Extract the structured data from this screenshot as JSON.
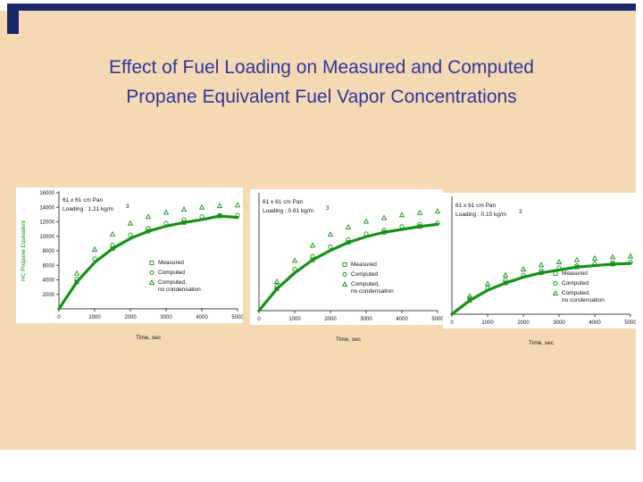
{
  "slide": {
    "title_line1": "Effect of Fuel Loading on Measured and Computed",
    "title_line2": "Propane Equivalent Fuel Vapor Concentrations"
  },
  "colors": {
    "background": "#f5d8b4",
    "frame_navy": "#1b2668",
    "title_blue": "#2b3a9a",
    "series_green": "#149214",
    "panel_white": "#ffffff",
    "axis_gray": "#444444",
    "text_black": "#111111"
  },
  "chart_data": [
    {
      "type": "line",
      "title": "61 x 61 cm Pan",
      "subtitle": "Loading : 1.21 kg/m",
      "subtitle_sup": "3",
      "xlabel": "Time, sec",
      "ylabel": "HC Propane Equivalent",
      "xlim": [
        0,
        5000
      ],
      "ylim": [
        0,
        16000
      ],
      "x_ticks": [
        0,
        1000,
        2000,
        3000,
        4000,
        5000
      ],
      "y_ticks": [
        2000,
        4000,
        6000,
        8000,
        10000,
        12000,
        14000,
        16000
      ],
      "grid": false,
      "legend_position": "lower right",
      "x": [
        0,
        500,
        1000,
        1500,
        2000,
        2500,
        3000,
        3500,
        4000,
        4500,
        5000
      ],
      "series": [
        {
          "name": "Measured",
          "marker": "square",
          "values": [
            0,
            3700,
            6400,
            8300,
            9700,
            10700,
            11400,
            11900,
            12300,
            12800,
            12600
          ]
        },
        {
          "name": "Computed",
          "marker": "circle",
          "values": [
            0,
            4100,
            6900,
            8800,
            10200,
            11100,
            11800,
            12300,
            12700,
            12900,
            12900
          ]
        },
        {
          "name": "Computed, no condensation",
          "marker": "triangle",
          "values": [
            0,
            4900,
            8200,
            10300,
            11800,
            12700,
            13300,
            13700,
            14000,
            14200,
            14300
          ]
        }
      ]
    },
    {
      "type": "line",
      "title": "61 x 61 cm Pan",
      "subtitle": "Loading : 0.61 kg/m",
      "subtitle_sup": "3",
      "xlabel": "Time, sec",
      "ylabel": "",
      "xlim": [
        0,
        5000
      ],
      "ylim": [
        0,
        16000
      ],
      "x_ticks": [
        0,
        1000,
        2000,
        3000,
        4000,
        5000
      ],
      "y_ticks": [],
      "grid": false,
      "legend_position": "lower right",
      "x": [
        0,
        500,
        1000,
        1500,
        2000,
        2500,
        3000,
        3500,
        4000,
        4500,
        5000
      ],
      "series": [
        {
          "name": "Measured",
          "marker": "square",
          "values": [
            0,
            3000,
            5200,
            7000,
            8300,
            9400,
            10200,
            10800,
            11200,
            11600,
            11900
          ]
        },
        {
          "name": "Computed",
          "marker": "circle",
          "values": [
            0,
            3400,
            5700,
            7500,
            8800,
            9800,
            10600,
            11100,
            11600,
            11900,
            12100
          ]
        },
        {
          "name": "Computed, no condensation",
          "marker": "triangle",
          "values": [
            0,
            4000,
            6900,
            9000,
            10500,
            11500,
            12300,
            12800,
            13200,
            13500,
            13700
          ]
        }
      ]
    },
    {
      "type": "line",
      "title": "61 x 61 cm Pan",
      "subtitle": "Loading : 0.15 kg/m",
      "subtitle_sup": "3",
      "xlabel": "Time, sec",
      "ylabel": "",
      "xlim": [
        0,
        5000
      ],
      "ylim": [
        0,
        16000
      ],
      "x_ticks": [
        0,
        1000,
        2000,
        3000,
        4000,
        5000
      ],
      "y_ticks": [],
      "grid": false,
      "legend_position": "lower right",
      "x": [
        0,
        500,
        1000,
        1500,
        2000,
        2500,
        3000,
        3500,
        4000,
        4500,
        5000
      ],
      "series": [
        {
          "name": "Measured",
          "marker": "square",
          "values": [
            0,
            1900,
            3300,
            4300,
            5100,
            5700,
            6100,
            6500,
            6700,
            6900,
            7000
          ]
        },
        {
          "name": "Computed",
          "marker": "circle",
          "values": [
            0,
            2200,
            3600,
            4700,
            5400,
            6000,
            6400,
            6700,
            7000,
            7100,
            7200
          ]
        },
        {
          "name": "Computed, no condensation",
          "marker": "triangle",
          "values": [
            0,
            2500,
            4200,
            5400,
            6200,
            6800,
            7200,
            7500,
            7700,
            7900,
            8000
          ]
        }
      ]
    }
  ]
}
